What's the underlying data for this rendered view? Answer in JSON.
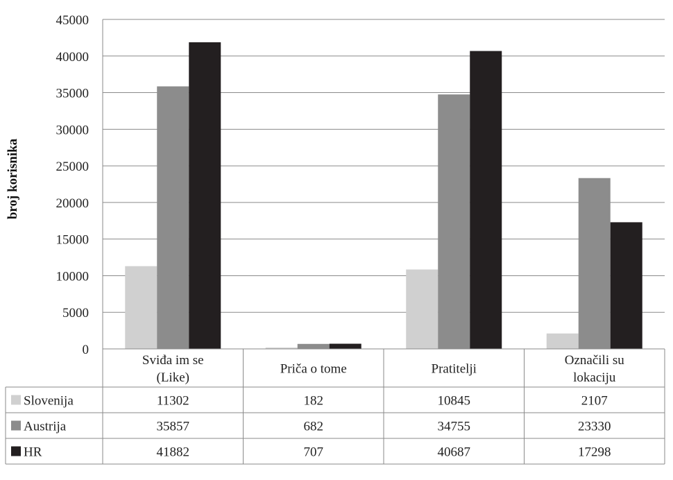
{
  "chart_data": {
    "type": "bar",
    "title": "",
    "xlabel": "",
    "ylabel": "broj korisnika",
    "ylim": [
      0,
      45000
    ],
    "ytick_step": 5000,
    "grid": true,
    "legend": "data-table-left",
    "categories": [
      [
        "Sviđa im se",
        "(Like)"
      ],
      [
        "Priča o tome"
      ],
      [
        "Pratitelji"
      ],
      [
        "Označili su",
        "lokaciju"
      ]
    ],
    "series": [
      {
        "name": "Slovenija",
        "color": "#d0d0d0",
        "values": [
          11302,
          182,
          10845,
          2107
        ]
      },
      {
        "name": "Austrija",
        "color": "#8c8c8c",
        "values": [
          35857,
          682,
          34755,
          23330
        ]
      },
      {
        "name": "HR",
        "color": "#231f20",
        "values": [
          41882,
          707,
          40687,
          17298
        ]
      }
    ],
    "grid_color": "#8a8a8a",
    "axis_color": "#8a8a8a"
  }
}
